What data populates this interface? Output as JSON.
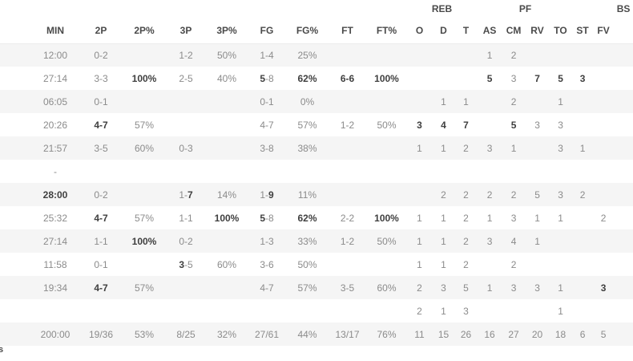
{
  "page": {
    "footnote": "s"
  },
  "table": {
    "group_headers": [
      {
        "label": "",
        "span": 10
      },
      {
        "label": "REB",
        "span": 3
      },
      {
        "label": "",
        "span": 1
      },
      {
        "label": "PF",
        "span": 2
      },
      {
        "label": "",
        "span": 3
      },
      {
        "label": "BS",
        "span": 1
      }
    ],
    "columns": [
      "MIN",
      "2P",
      "2P%",
      "3P",
      "3P%",
      "FG",
      "FG%",
      "FT",
      "FT%",
      "O",
      "D",
      "T",
      "AS",
      "CM",
      "RV",
      "TO",
      "ST",
      "FV"
    ],
    "rows": [
      [
        "12:00",
        "0-2",
        "",
        "1-2",
        "50%",
        "1-4",
        "25%",
        "",
        "",
        "",
        "",
        "",
        "1",
        "2",
        "",
        "",
        "",
        ""
      ],
      [
        "27:14",
        "3-3",
        "**100%**",
        "2-5",
        "40%",
        "**5**-8",
        "**62%**",
        "**6-6**",
        "**100%**",
        "",
        "",
        "",
        "**5**",
        "3",
        "**7**",
        "**5**",
        "**3**",
        ""
      ],
      [
        "06:05",
        "0-1",
        "",
        "",
        "",
        "0-1",
        "0%",
        "",
        "",
        "",
        "1",
        "1",
        "",
        "2",
        "",
        "1",
        "",
        ""
      ],
      [
        "20:26",
        "**4-7**",
        "57%",
        "",
        "",
        "4-7",
        "57%",
        "1-2",
        "50%",
        "**3**",
        "**4**",
        "**7**",
        "",
        "**5**",
        "3",
        "3",
        "",
        ""
      ],
      [
        "21:57",
        "3-5",
        "60%",
        "0-3",
        "",
        "3-8",
        "38%",
        "",
        "",
        "1",
        "1",
        "2",
        "3",
        "1",
        "",
        "3",
        "1",
        ""
      ],
      [
        "-",
        "",
        "",
        "",
        "",
        "",
        "",
        "",
        "",
        "",
        "",
        "",
        "",
        "",
        "",
        "",
        "",
        ""
      ],
      [
        "**28:00**",
        "0-2",
        "",
        "1-**7**",
        "14%",
        "1-**9**",
        "11%",
        "",
        "",
        "",
        "2",
        "2",
        "2",
        "2",
        "5",
        "3",
        "2",
        ""
      ],
      [
        "25:32",
        "**4-7**",
        "57%",
        "1-1",
        "**100%**",
        "**5**-8",
        "**62%**",
        "2-2",
        "**100%**",
        "1",
        "1",
        "2",
        "1",
        "3",
        "1",
        "1",
        "",
        "2"
      ],
      [
        "27:14",
        "1-1",
        "**100%**",
        "0-2",
        "",
        "1-3",
        "33%",
        "1-2",
        "50%",
        "1",
        "1",
        "2",
        "3",
        "4",
        "1",
        "",
        "",
        ""
      ],
      [
        "11:58",
        "0-1",
        "",
        "**3**-5",
        "60%",
        "3-6",
        "50%",
        "",
        "",
        "1",
        "1",
        "2",
        "",
        "2",
        "",
        "",
        "",
        ""
      ],
      [
        "19:34",
        "**4-7**",
        "57%",
        "",
        "",
        "4-7",
        "57%",
        "3-5",
        "60%",
        "2",
        "3",
        "5",
        "1",
        "3",
        "3",
        "1",
        "",
        "**3**"
      ],
      [
        "",
        "",
        "",
        "",
        "",
        "",
        "",
        "",
        "",
        "2",
        "1",
        "3",
        "",
        "",
        "",
        "1",
        "",
        ""
      ]
    ],
    "total": [
      "200:00",
      "19/36",
      "53%",
      "8/25",
      "32%",
      "27/61",
      "44%",
      "13/17",
      "76%",
      "11",
      "15",
      "26",
      "16",
      "27",
      "20",
      "18",
      "6",
      "5"
    ]
  }
}
